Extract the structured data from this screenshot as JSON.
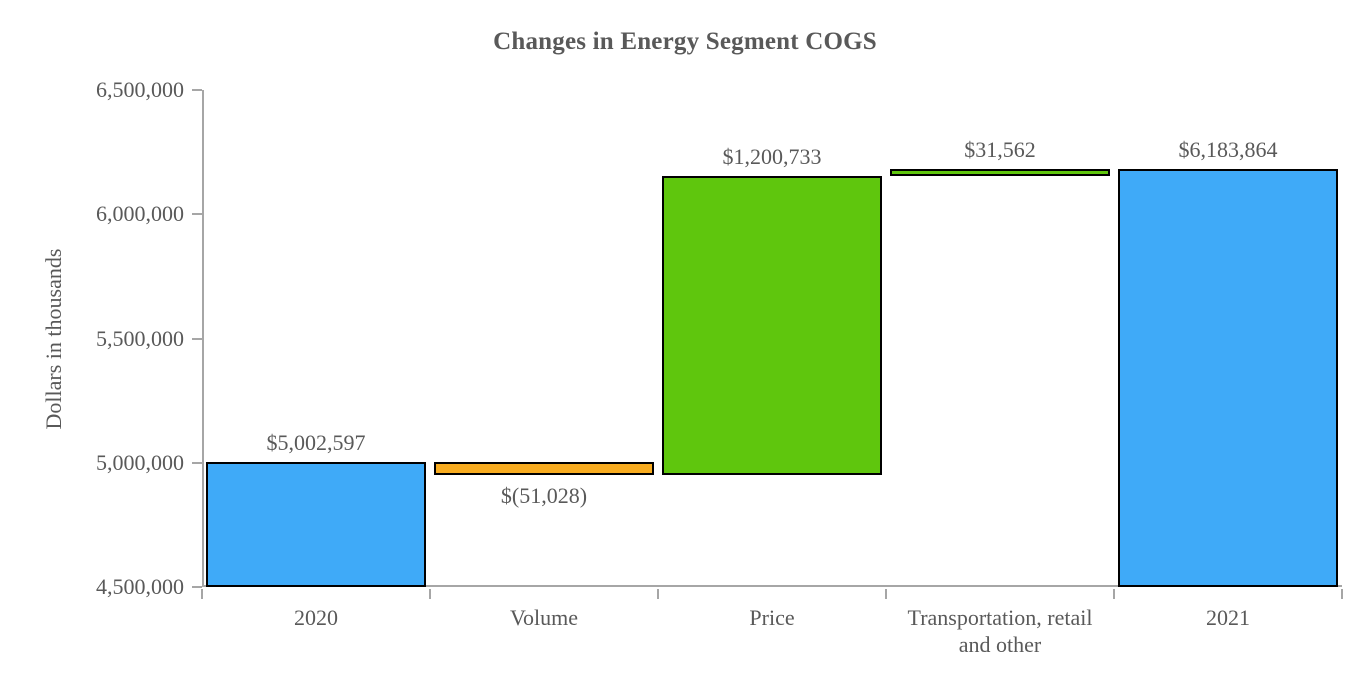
{
  "chart_data": {
    "type": "waterfall",
    "title": "Changes in Energy Segment COGS",
    "ylabel": "Dollars in thousands",
    "xlabel": "",
    "ylim": [
      4500000,
      6500000
    ],
    "ytick_step": 500000,
    "ytick_labels": [
      "4,500,000",
      "5,000,000",
      "5,500,000",
      "6,000,000",
      "6,500,000"
    ],
    "grid": "off",
    "legend": "none",
    "categories": [
      "2020",
      "Volume",
      "Price",
      "Transportation, retail and other",
      "2021"
    ],
    "bars": [
      {
        "category": "2020",
        "label": "$5,002,597",
        "start": 4500000,
        "end": 5002597,
        "value": 5002597,
        "color_key": "blue",
        "label_side": "above"
      },
      {
        "category": "Volume",
        "label": "$(51,028)",
        "start": 5002597,
        "end": 4951569,
        "value": -51028,
        "color_key": "orange",
        "label_side": "below"
      },
      {
        "category": "Price",
        "label": "$1,200,733",
        "start": 4951569,
        "end": 6152302,
        "value": 1200733,
        "color_key": "green",
        "label_side": "above"
      },
      {
        "category": "Transportation, retail and other",
        "label": "$31,562",
        "start": 6152302,
        "end": 6183864,
        "value": 31562,
        "color_key": "green",
        "label_side": "above"
      },
      {
        "category": "2021",
        "label": "$6,183,864",
        "start": 4500000,
        "end": 6183864,
        "value": 6183864,
        "color_key": "blue",
        "label_side": "above"
      }
    ],
    "colors": {
      "blue": "#3FAAF8",
      "green": "#5FC60D",
      "orange": "#F8AC20",
      "axis": "#A6A6A6",
      "text": "#595959",
      "bar_border": "#000000"
    }
  }
}
